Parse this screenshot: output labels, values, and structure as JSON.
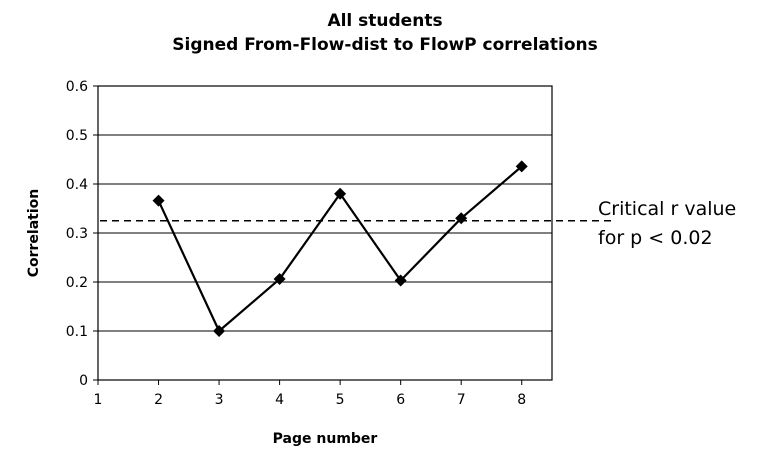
{
  "chart_data": {
    "type": "line",
    "title": "All students",
    "subtitle": "Signed From-Flow-dist to FlowP correlations",
    "xlabel": "Page number",
    "ylabel": "Correlation",
    "xlim": [
      1,
      8.5
    ],
    "ylim": [
      0,
      0.6
    ],
    "x_ticks": [
      "1",
      "2",
      "3",
      "4",
      "5",
      "6",
      "7",
      "8"
    ],
    "y_ticks": [
      "0",
      "0.1",
      "0.2",
      "0.3",
      "0.4",
      "0.5",
      "0.6"
    ],
    "grid": true,
    "series": [
      {
        "x": [
          2,
          3,
          4,
          5,
          6,
          7,
          8
        ],
        "values": [
          0.366,
          0.1,
          0.206,
          0.38,
          0.203,
          0.33,
          0.436
        ],
        "color": "#000000",
        "marker": "diamond"
      }
    ],
    "reference_line": {
      "value": 0.325,
      "style": "dashed",
      "label_line1": "Critical r value",
      "label_line2": "for p < 0.02"
    }
  }
}
